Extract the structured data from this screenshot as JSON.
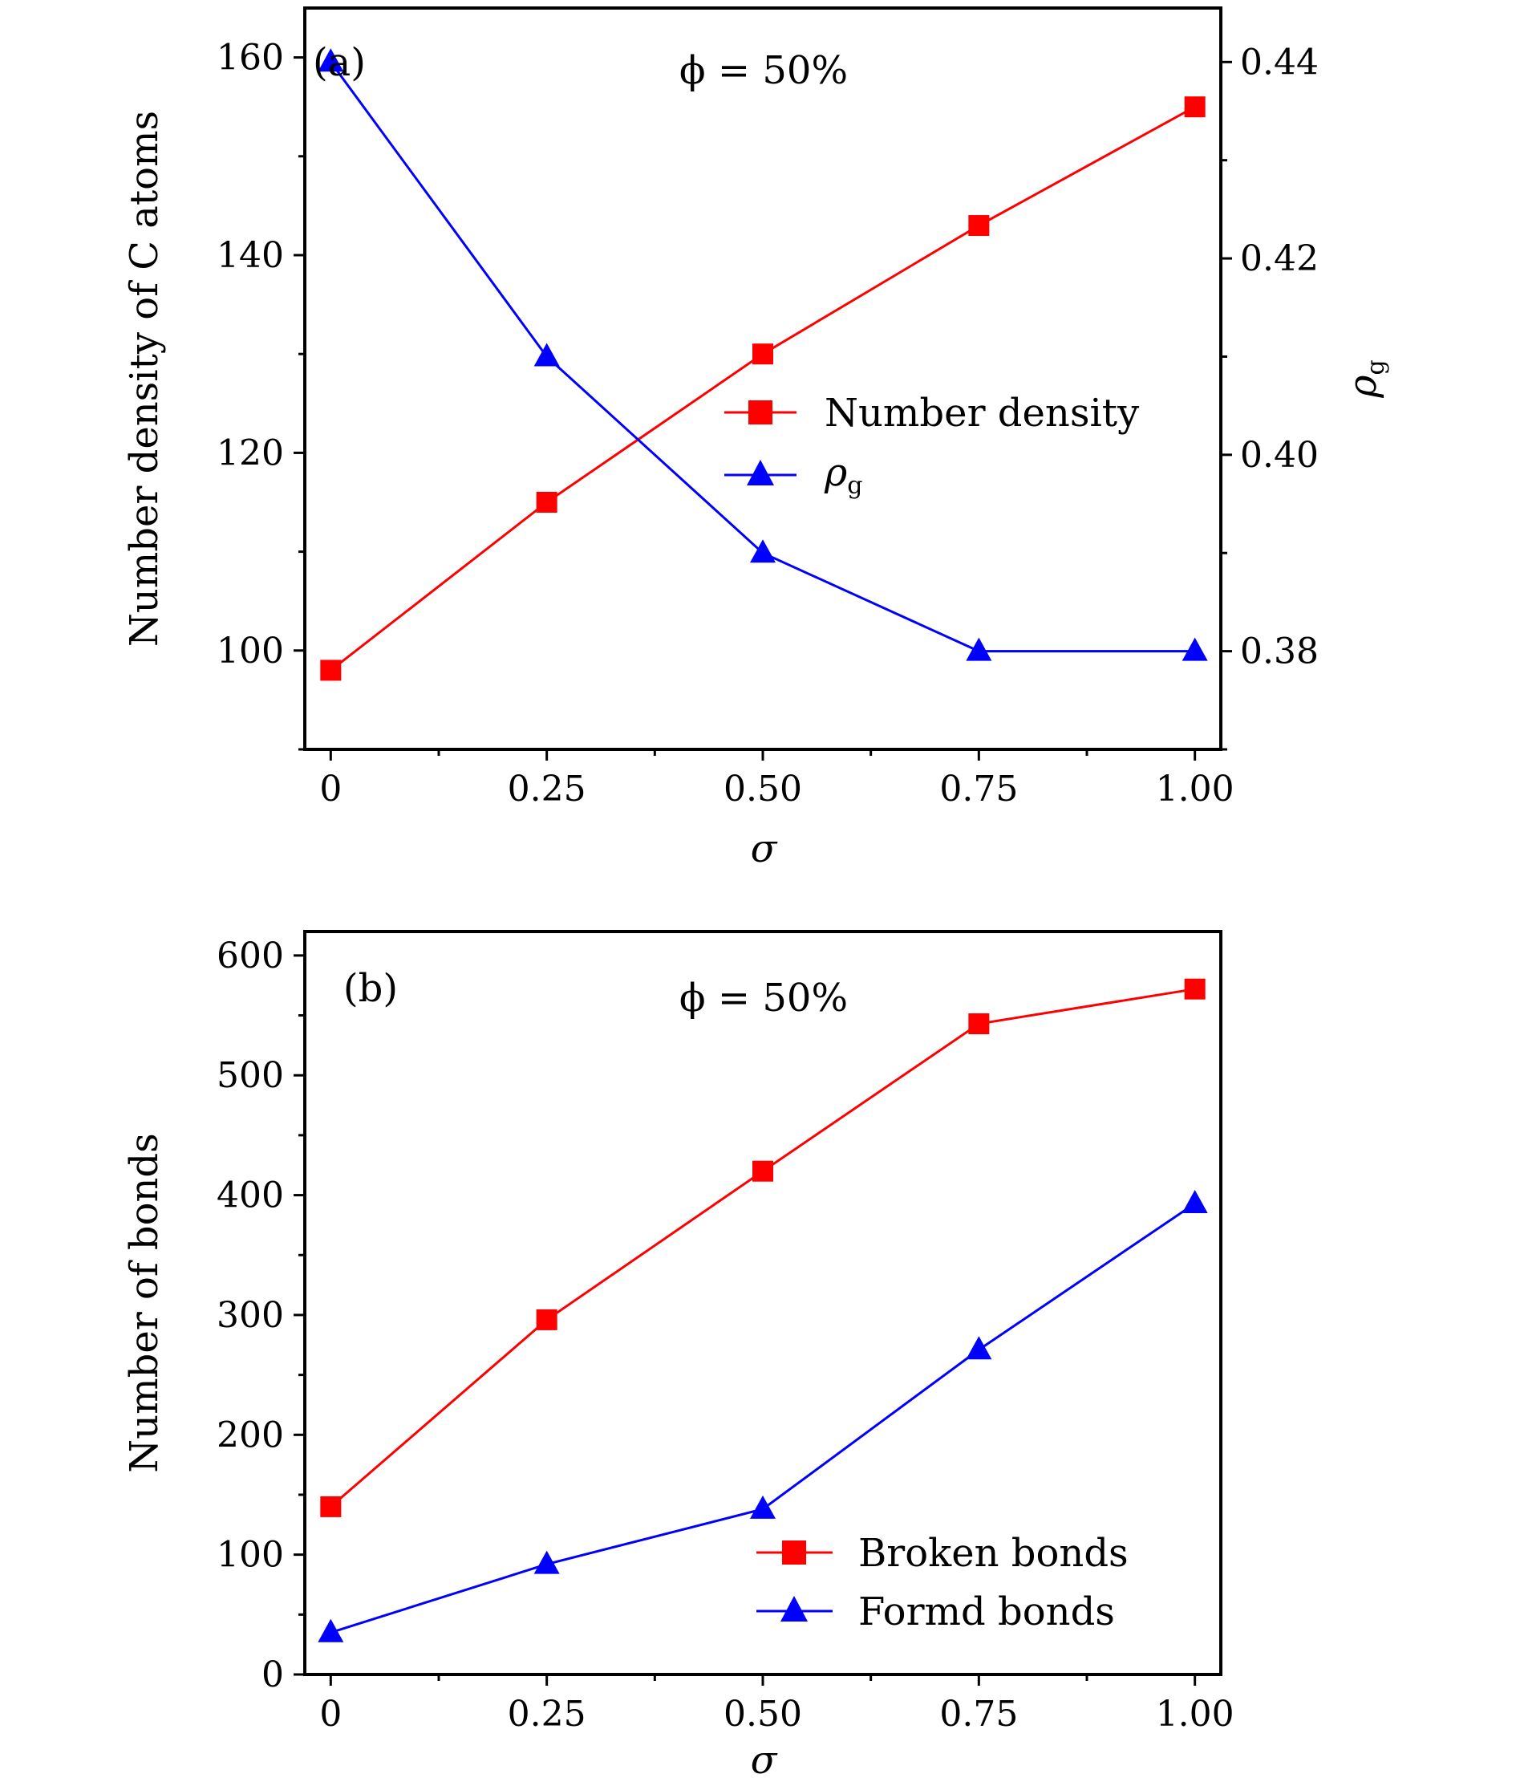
{
  "chart_data": [
    {
      "type": "line",
      "panel_label": "(a)",
      "annotation": "ϕ = 50%",
      "xlabel": "σ",
      "ylabel": "Number density of C atoms",
      "y2label": "ρg",
      "x": [
        0,
        0.25,
        0.5,
        0.75,
        1.0
      ],
      "xticks": [
        "0",
        "0.25",
        "0.50",
        "0.75",
        "1.00"
      ],
      "xlim": [
        -0.03,
        1.03
      ],
      "ylim": [
        90,
        165
      ],
      "yticks": [
        "100",
        "120",
        "140",
        "160"
      ],
      "y2lim": [
        0.37,
        0.4455
      ],
      "y2ticks": [
        "0.38",
        "0.40",
        "0.42",
        "0.44"
      ],
      "legend_position": "center-right",
      "series": [
        {
          "name": "Number density",
          "axis": "left",
          "marker": "square",
          "color": "#ff0000",
          "values": [
            98,
            115,
            130,
            143,
            155
          ]
        },
        {
          "name": "ρg",
          "axis": "right",
          "marker": "triangle",
          "color": "#0000ff",
          "values": [
            0.44,
            0.41,
            0.39,
            0.38,
            0.38
          ]
        }
      ]
    },
    {
      "type": "line",
      "panel_label": "(b)",
      "annotation": "ϕ = 50%",
      "xlabel": "σ",
      "ylabel": "Number of bonds",
      "x": [
        0,
        0.25,
        0.5,
        0.75,
        1.0
      ],
      "xticks": [
        "0",
        "0.25",
        "0.50",
        "0.75",
        "1.00"
      ],
      "xlim": [
        -0.03,
        1.03
      ],
      "ylim": [
        0,
        620
      ],
      "yticks": [
        "0",
        "100",
        "200",
        "300",
        "400",
        "500",
        "600"
      ],
      "legend_position": "bottom-right",
      "series": [
        {
          "name": "Broken bonds",
          "axis": "left",
          "marker": "square",
          "color": "#ff0000",
          "values": [
            140,
            296,
            420,
            543,
            572
          ]
        },
        {
          "name": "Formd bonds",
          "axis": "left",
          "marker": "triangle",
          "color": "#0000ff",
          "values": [
            35,
            92,
            138,
            271,
            393
          ]
        }
      ]
    }
  ]
}
